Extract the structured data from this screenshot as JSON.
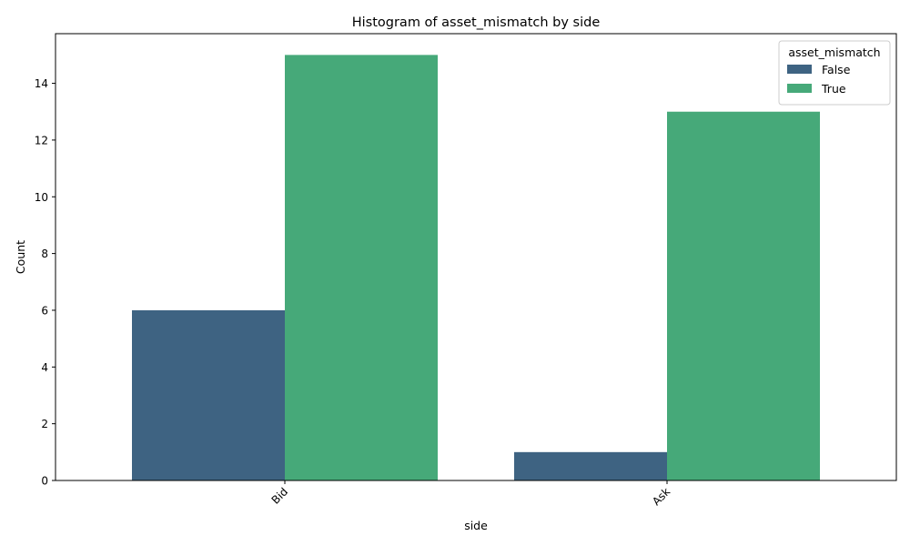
{
  "chart_data": {
    "type": "bar",
    "title": "Histogram of asset_mismatch by side",
    "xlabel": "side",
    "ylabel": "Count",
    "categories": [
      "Bid",
      "Ask"
    ],
    "series": [
      {
        "name": "False",
        "values": [
          6,
          1
        ],
        "color": "#3e6382"
      },
      {
        "name": "True",
        "values": [
          15,
          13
        ],
        "color": "#46a979"
      }
    ],
    "ylim": [
      0,
      15.75
    ],
    "yticks": [
      0,
      2,
      4,
      6,
      8,
      10,
      12,
      14
    ],
    "legend": {
      "title": "asset_mismatch",
      "position": "top-right"
    },
    "grid": false,
    "xtick_rotation": 45
  }
}
